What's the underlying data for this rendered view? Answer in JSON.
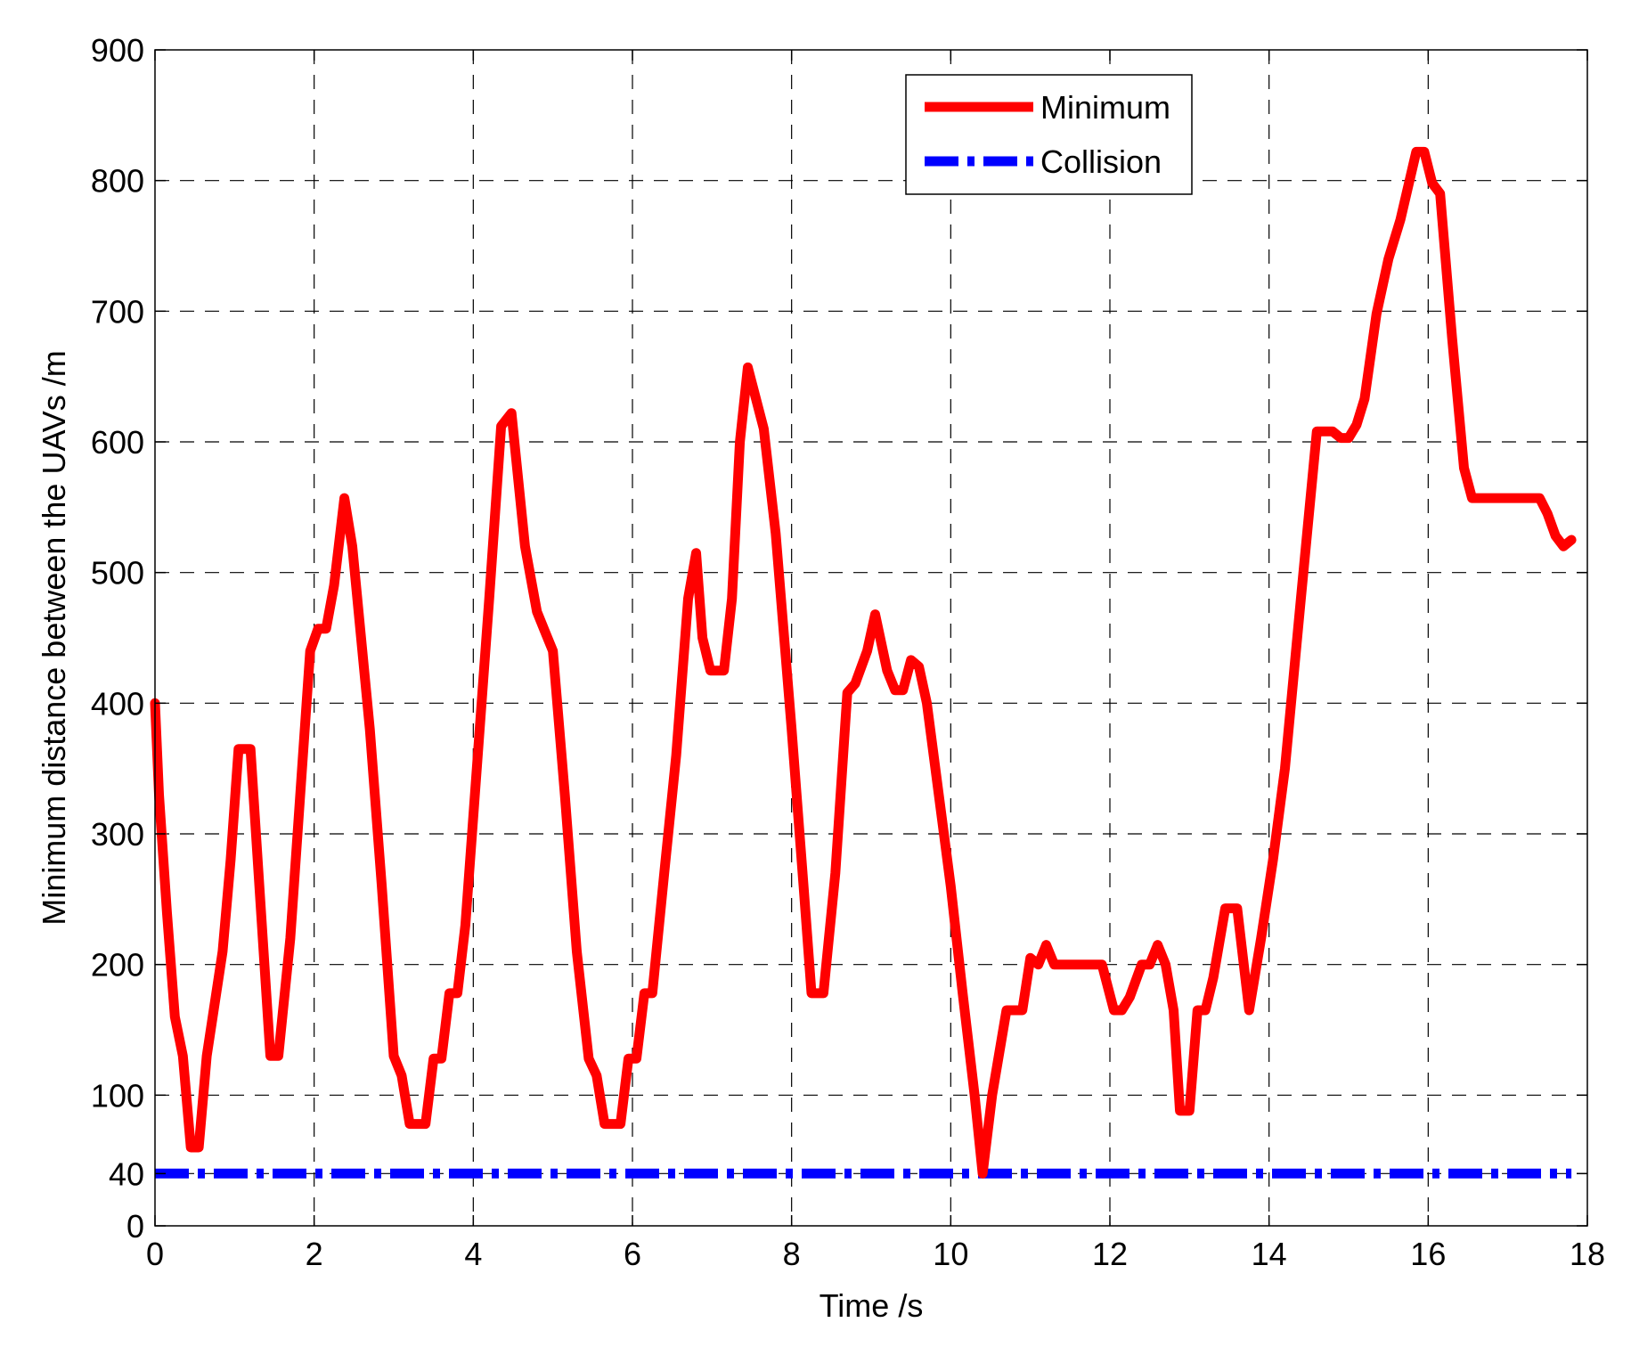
{
  "chart_data": {
    "type": "line",
    "xlabel": "Time /s",
    "ylabel": "Minimum distance between the UAVs /m",
    "xlim": [
      0,
      18
    ],
    "ylim": [
      0,
      900
    ],
    "xticks": [
      0,
      2,
      4,
      6,
      8,
      10,
      12,
      14,
      16,
      18
    ],
    "yticks": [
      0,
      40,
      100,
      200,
      300,
      400,
      500,
      600,
      700,
      800,
      900
    ],
    "grid": true,
    "legend_position": "top-right",
    "series": [
      {
        "name": "Minimum",
        "color": "#ff0000",
        "style": "solid",
        "points": [
          [
            0.0,
            400
          ],
          [
            0.05,
            330
          ],
          [
            0.15,
            240
          ],
          [
            0.25,
            160
          ],
          [
            0.35,
            130
          ],
          [
            0.45,
            60
          ],
          [
            0.55,
            60
          ],
          [
            0.65,
            130
          ],
          [
            0.85,
            210
          ],
          [
            0.95,
            280
          ],
          [
            1.05,
            365
          ],
          [
            1.2,
            365
          ],
          [
            1.45,
            130
          ],
          [
            1.55,
            130
          ],
          [
            1.7,
            220
          ],
          [
            1.95,
            440
          ],
          [
            2.05,
            457
          ],
          [
            2.15,
            457
          ],
          [
            2.25,
            490
          ],
          [
            2.38,
            557
          ],
          [
            2.48,
            520
          ],
          [
            2.7,
            380
          ],
          [
            2.85,
            260
          ],
          [
            3.0,
            130
          ],
          [
            3.1,
            115
          ],
          [
            3.2,
            78
          ],
          [
            3.4,
            78
          ],
          [
            3.5,
            128
          ],
          [
            3.6,
            128
          ],
          [
            3.7,
            178
          ],
          [
            3.8,
            178
          ],
          [
            3.9,
            230
          ],
          [
            4.2,
            480
          ],
          [
            4.35,
            612
          ],
          [
            4.48,
            622
          ],
          [
            4.65,
            520
          ],
          [
            4.8,
            470
          ],
          [
            4.9,
            455
          ],
          [
            5.0,
            440
          ],
          [
            5.15,
            330
          ],
          [
            5.3,
            210
          ],
          [
            5.45,
            128
          ],
          [
            5.55,
            115
          ],
          [
            5.65,
            78
          ],
          [
            5.85,
            78
          ],
          [
            5.95,
            128
          ],
          [
            6.05,
            128
          ],
          [
            6.15,
            178
          ],
          [
            6.25,
            178
          ],
          [
            6.4,
            270
          ],
          [
            6.55,
            360
          ],
          [
            6.7,
            480
          ],
          [
            6.8,
            515
          ],
          [
            6.88,
            450
          ],
          [
            6.98,
            425
          ],
          [
            7.15,
            425
          ],
          [
            7.25,
            480
          ],
          [
            7.35,
            600
          ],
          [
            7.45,
            657
          ],
          [
            7.65,
            610
          ],
          [
            7.8,
            530
          ],
          [
            8.0,
            380
          ],
          [
            8.15,
            260
          ],
          [
            8.25,
            178
          ],
          [
            8.4,
            178
          ],
          [
            8.55,
            270
          ],
          [
            8.7,
            408
          ],
          [
            8.8,
            415
          ],
          [
            8.95,
            440
          ],
          [
            9.05,
            468
          ],
          [
            9.2,
            425
          ],
          [
            9.3,
            410
          ],
          [
            9.4,
            410
          ],
          [
            9.5,
            433
          ],
          [
            9.6,
            428
          ],
          [
            9.7,
            400
          ],
          [
            9.85,
            330
          ],
          [
            10.0,
            260
          ],
          [
            10.15,
            178
          ],
          [
            10.3,
            100
          ],
          [
            10.4,
            40
          ],
          [
            10.52,
            100
          ],
          [
            10.7,
            165
          ],
          [
            10.9,
            165
          ],
          [
            11.0,
            205
          ],
          [
            11.1,
            200
          ],
          [
            11.2,
            215
          ],
          [
            11.3,
            200
          ],
          [
            11.9,
            200
          ],
          [
            12.05,
            165
          ],
          [
            12.15,
            165
          ],
          [
            12.25,
            175
          ],
          [
            12.4,
            200
          ],
          [
            12.5,
            200
          ],
          [
            12.6,
            215
          ],
          [
            12.7,
            200
          ],
          [
            12.8,
            165
          ],
          [
            12.88,
            88
          ],
          [
            13.0,
            88
          ],
          [
            13.1,
            165
          ],
          [
            13.2,
            165
          ],
          [
            13.3,
            190
          ],
          [
            13.45,
            243
          ],
          [
            13.6,
            243
          ],
          [
            13.75,
            165
          ],
          [
            13.9,
            220
          ],
          [
            14.05,
            280
          ],
          [
            14.2,
            350
          ],
          [
            14.4,
            480
          ],
          [
            14.6,
            608
          ],
          [
            14.8,
            608
          ],
          [
            14.9,
            603
          ],
          [
            15.0,
            603
          ],
          [
            15.1,
            613
          ],
          [
            15.2,
            633
          ],
          [
            15.35,
            698
          ],
          [
            15.5,
            740
          ],
          [
            15.65,
            770
          ],
          [
            15.85,
            822
          ],
          [
            15.95,
            822
          ],
          [
            16.05,
            798
          ],
          [
            16.15,
            790
          ],
          [
            16.3,
            680
          ],
          [
            16.45,
            580
          ],
          [
            16.55,
            557
          ],
          [
            17.4,
            557
          ],
          [
            17.5,
            545
          ],
          [
            17.6,
            528
          ],
          [
            17.7,
            520
          ],
          [
            17.8,
            525
          ]
        ]
      },
      {
        "name": "Collision",
        "color": "#0000ff",
        "style": "dashdot",
        "points": [
          [
            0,
            40
          ],
          [
            17.8,
            40
          ]
        ]
      }
    ]
  }
}
